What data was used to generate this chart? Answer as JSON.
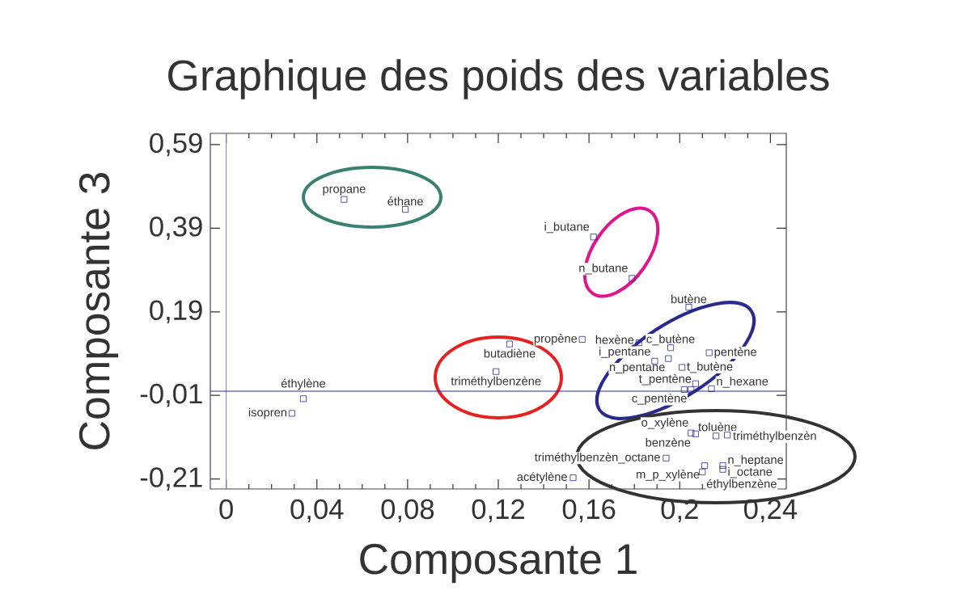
{
  "chart_data": {
    "type": "scatter",
    "title": "Graphique des poids des variables",
    "xlabel": "Composante 1",
    "ylabel": "Composante 3",
    "marker": "square",
    "xlim": [
      -0.007,
      0.247
    ],
    "ylim": [
      -0.234,
      0.617
    ],
    "xticks": [
      {
        "value": 0,
        "label": "0"
      },
      {
        "value": 0.04,
        "label": "0,04"
      },
      {
        "value": 0.08,
        "label": "0,08"
      },
      {
        "value": 0.12,
        "label": "0,12"
      },
      {
        "value": 0.16,
        "label": "0,16"
      },
      {
        "value": 0.2,
        "label": "0,2"
      },
      {
        "value": 0.24,
        "label": "0,24"
      }
    ],
    "yticks": [
      {
        "value": -0.21,
        "label": "-0,21"
      },
      {
        "value": -0.01,
        "label": "-0,01"
      },
      {
        "value": 0.19,
        "label": "0,19"
      },
      {
        "value": 0.39,
        "label": "0,39"
      },
      {
        "value": 0.59,
        "label": "0,59"
      }
    ],
    "ref_lines": [
      {
        "axis": "x",
        "value": 0,
        "color": "#8080c8"
      },
      {
        "axis": "y",
        "value": 0,
        "color": "#2a2a9a"
      }
    ],
    "series": [
      {
        "color": "#2a2a9a",
        "x": [
          0.052,
          0.079,
          0.162,
          0.179,
          0.204,
          0.157,
          0.182,
          0.196,
          0.213,
          0.195,
          0.189,
          0.201,
          0.207,
          0.205,
          0.202,
          0.214,
          0.125,
          0.119,
          0.034,
          0.029,
          0.153,
          0.194,
          0.211,
          0.219,
          0.219,
          0.21,
          0.205,
          0.207,
          0.216,
          0.221
        ],
        "values": [
          0.459,
          0.435,
          0.369,
          0.27,
          0.201,
          0.124,
          0.116,
          0.104,
          0.092,
          0.078,
          0.072,
          0.057,
          0.018,
          0.004,
          0.004,
          0.006,
          0.113,
          0.047,
          -0.018,
          -0.053,
          -0.207,
          -0.16,
          -0.178,
          -0.178,
          -0.187,
          -0.193,
          -0.1,
          -0.102,
          -0.107,
          -0.105
        ]
      }
    ],
    "annotations": [
      {
        "text": "propane",
        "x": 0.052,
        "y": 0.459
      },
      {
        "text": "éthane",
        "x": 0.079,
        "y": 0.435
      },
      {
        "text": "i_butane",
        "x": 0.162,
        "y": 0.369
      },
      {
        "text": "n_butane",
        "x": 0.179,
        "y": 0.27
      },
      {
        "text": "butène",
        "x": 0.204,
        "y": 0.201
      },
      {
        "text": "propène",
        "x": 0.157,
        "y": 0.124
      },
      {
        "text": "hexène",
        "x": 0.182,
        "y": 0.116
      },
      {
        "text": "c_butène",
        "x": 0.196,
        "y": 0.104
      },
      {
        "text": "pentène",
        "x": 0.213,
        "y": 0.092
      },
      {
        "text": "n_pentane",
        "x": 0.195,
        "y": 0.078
      },
      {
        "text": "i_pentane",
        "x": 0.189,
        "y": 0.072
      },
      {
        "text": "t_butène",
        "x": 0.201,
        "y": 0.057
      },
      {
        "text": "t_pentène",
        "x": 0.207,
        "y": 0.018
      },
      {
        "text": "c_pentène",
        "x": 0.205,
        "y": 0.004
      },
      {
        "text": "n_hexane",
        "x": 0.214,
        "y": 0.006
      },
      {
        "text": "butadiène",
        "x": 0.125,
        "y": 0.113
      },
      {
        "text": "triméthylbenzène",
        "x": 0.119,
        "y": 0.047
      },
      {
        "text": "éthylène",
        "x": 0.034,
        "y": -0.018
      },
      {
        "text": "isopren",
        "x": 0.029,
        "y": -0.053
      },
      {
        "text": "acétylène",
        "x": 0.153,
        "y": -0.207
      },
      {
        "text": "triméthylbenzèn_octane",
        "x": 0.194,
        "y": -0.16
      },
      {
        "text": "m_p_xylène",
        "x": 0.211,
        "y": -0.178
      },
      {
        "text": "n_heptane",
        "x": 0.219,
        "y": -0.178
      },
      {
        "text": "i_octane",
        "x": 0.219,
        "y": -0.187
      },
      {
        "text": "éthylbenzène",
        "x": 0.21,
        "y": -0.193
      },
      {
        "text": "o_xylène",
        "x": 0.205,
        "y": -0.1
      },
      {
        "text": "benzène",
        "x": 0.207,
        "y": -0.102
      },
      {
        "text": "toluène",
        "x": 0.216,
        "y": -0.107
      },
      {
        "text": "triméthylbenzèn",
        "x": 0.221,
        "y": -0.105
      }
    ]
  }
}
